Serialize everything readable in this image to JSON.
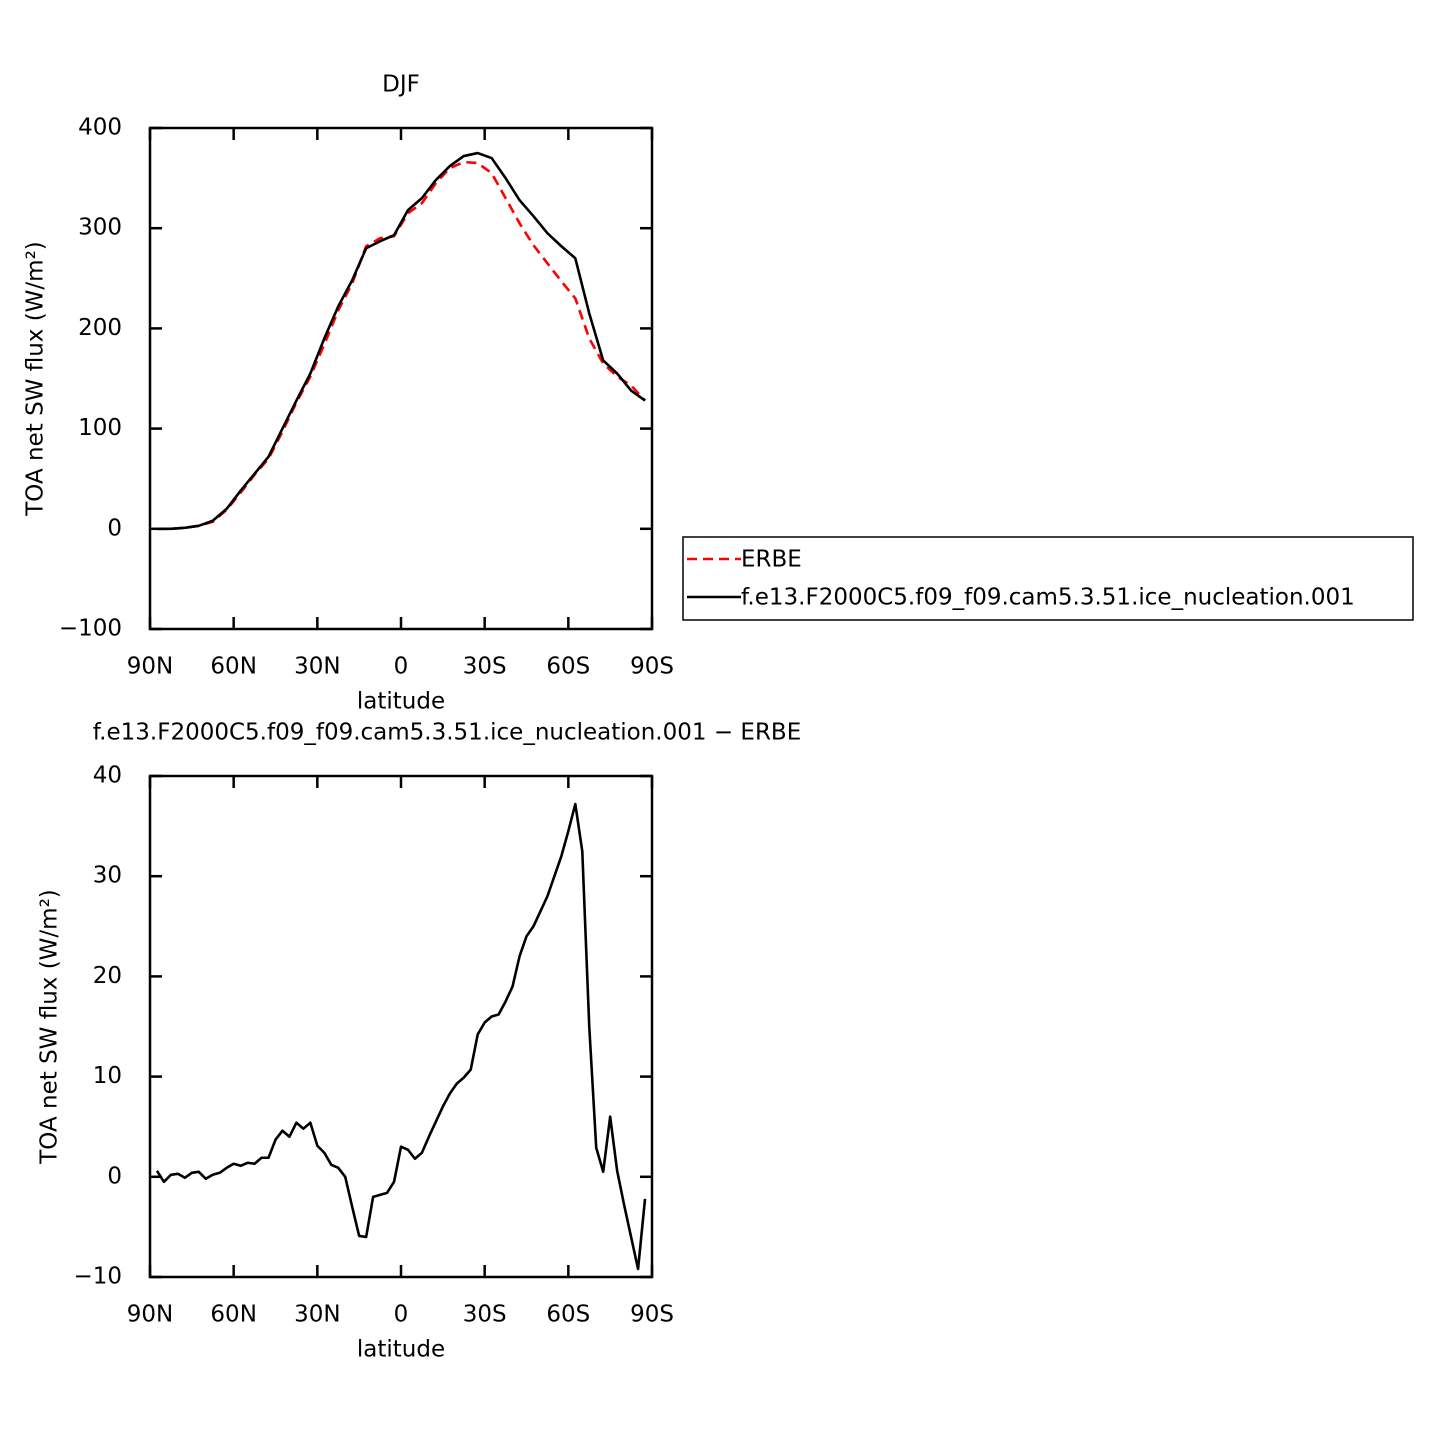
{
  "chart_data": [
    {
      "type": "line",
      "title": "DJF",
      "x_label": "latitude",
      "y_label": "TOA net SW flux (W/m²)",
      "x": [
        87.5,
        82.5,
        77.5,
        72.5,
        67.5,
        62.5,
        57.5,
        52.5,
        47.5,
        42.5,
        37.5,
        32.5,
        27.5,
        22.5,
        17.5,
        12.5,
        7.5,
        2.5,
        -2.5,
        -7.5,
        -12.5,
        -17.5,
        -22.5,
        -27.5,
        -32.5,
        -37.5,
        -42.5,
        -47.5,
        -52.5,
        -57.5,
        -62.5,
        -67.5,
        -72.5,
        -77.5,
        -82.5,
        -87.5
      ],
      "series": [
        {
          "name": "ERBE",
          "color": "#ff0000",
          "linestyle": "dashed",
          "values": [
            0,
            0,
            1,
            3,
            7,
            19,
            36,
            54,
            70,
            97,
            126,
            152,
            184,
            218,
            245,
            282,
            290,
            292,
            315,
            325,
            345,
            360,
            366,
            365,
            355,
            330,
            305,
            283,
            265,
            247,
            230,
            190,
            165,
            152,
            143,
            128
          ]
        },
        {
          "name": "f.e13.F2000C5.f09_f09.cam5.3.51.ice_nucleation.001",
          "color": "#000000",
          "linestyle": "solid",
          "values": [
            0,
            0,
            1,
            3,
            8,
            20,
            38,
            55,
            72,
            100,
            128,
            155,
            190,
            222,
            248,
            280,
            287,
            293,
            318,
            330,
            348,
            362,
            372,
            375,
            370,
            350,
            328,
            312,
            295,
            282,
            270,
            215,
            168,
            155,
            138,
            128
          ]
        }
      ],
      "xlim": [
        90,
        -90
      ],
      "xticks": [
        {
          "value": 90,
          "label": "90N"
        },
        {
          "value": 60,
          "label": "60N"
        },
        {
          "value": 30,
          "label": "30N"
        },
        0,
        {
          "value": -30,
          "label": "30S"
        },
        {
          "value": -60,
          "label": "60S"
        },
        {
          "value": -90,
          "label": "90S"
        }
      ],
      "ylim": [
        -100,
        400
      ],
      "yticks": [
        {
          "value": -100,
          "label": "−100"
        },
        0,
        100,
        200,
        300,
        400
      ],
      "grid": false,
      "legend": "right"
    },
    {
      "type": "line",
      "title": "f.e13.F2000C5.f09_f09.cam5.3.51.ice_nucleation.001 − ERBE",
      "x_label": "latitude",
      "y_label": "TOA net SW flux (W/m²)",
      "x": [
        87.5,
        85,
        82.5,
        80,
        77.5,
        75,
        72.5,
        70,
        67.5,
        65,
        62.5,
        60,
        57.5,
        55,
        52.5,
        50,
        47.5,
        45,
        42.5,
        40,
        37.5,
        35,
        32.5,
        30,
        27.5,
        25,
        22.5,
        20,
        17.5,
        15,
        12.5,
        10,
        7.5,
        5,
        2.5,
        0,
        -2.5,
        -5,
        -7.5,
        -10,
        -12.5,
        -15,
        -17.5,
        -20,
        -22.5,
        -25,
        -27.5,
        -30,
        -32.5,
        -35,
        -37.5,
        -40,
        -42.5,
        -45,
        -47.5,
        -50,
        -52.5,
        -55,
        -57.5,
        -60,
        -62.5,
        -65,
        -67.5,
        -70,
        -72.5,
        -75,
        -77.5,
        -80,
        -82.5,
        -85,
        -87.5
      ],
      "color": "#000000",
      "linestyle": "solid",
      "values": [
        0.6,
        -0.5,
        0.2,
        0.3,
        -0.1,
        0.4,
        0.5,
        -0.2,
        0.2,
        0.4,
        0.9,
        1.3,
        1.1,
        1.4,
        1.3,
        1.9,
        1.9,
        3.7,
        4.6,
        4.0,
        5.4,
        4.8,
        5.4,
        3.1,
        2.4,
        1.2,
        0.9,
        0.0,
        -3.0,
        -5.9,
        -6.0,
        -2.0,
        -1.8,
        -1.6,
        -0.5,
        3.0,
        2.7,
        1.8,
        2.4,
        4.0,
        5.5,
        7.0,
        8.3,
        9.3,
        9.9,
        10.7,
        14.2,
        15.4,
        16.0,
        16.2,
        17.5,
        19.0,
        22.0,
        24.0,
        25.0,
        26.5,
        28.0,
        30.0,
        32.0,
        34.5,
        37.2,
        32.5,
        15.0,
        2.9,
        0.5,
        6.0,
        0.6,
        -2.8,
        -6.0,
        -9.2,
        -2.2
      ],
      "xlim": [
        90,
        -90
      ],
      "xticks": [
        {
          "value": 90,
          "label": "90N"
        },
        {
          "value": 60,
          "label": "60N"
        },
        {
          "value": 30,
          "label": "30N"
        },
        0,
        {
          "value": -30,
          "label": "30S"
        },
        {
          "value": -60,
          "label": "60S"
        },
        {
          "value": -90,
          "label": "90S"
        }
      ],
      "ylim": [
        -10,
        40
      ],
      "yticks": [
        {
          "value": -10,
          "label": "−10"
        },
        0,
        10,
        20,
        30,
        40
      ],
      "grid": false
    }
  ]
}
